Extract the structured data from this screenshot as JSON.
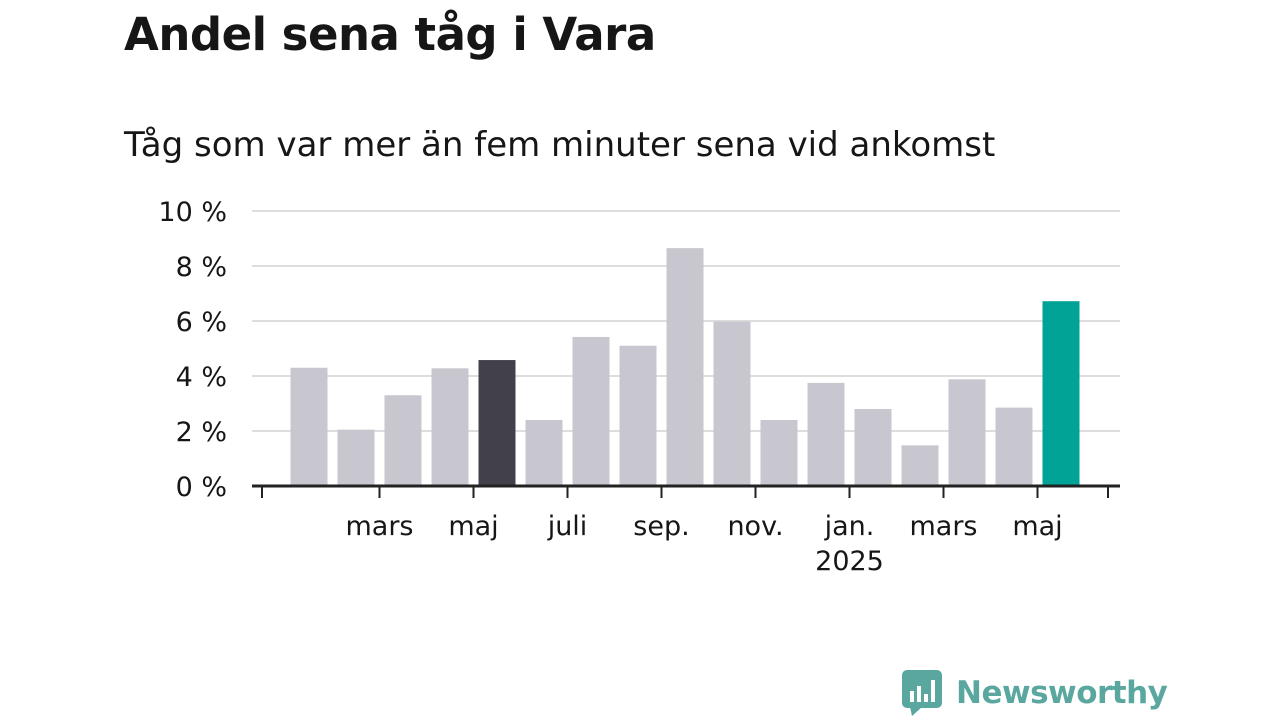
{
  "title": "Andel sena tåg i Vara",
  "subtitle": "Tåg som var mer än fem minuter sena vid ankomst",
  "brand": {
    "name": "Newsworthy",
    "icon": "bar-chart-speech-bubble-icon",
    "color": "#5aa7a0"
  },
  "colors": {
    "bar_default": "#c8c7cf",
    "bar_highlight_dark": "#41404b",
    "bar_highlight_latest": "#00a395",
    "gridline": "#dddddd",
    "axis": "#222222",
    "text": "#161616"
  },
  "chart_data": {
    "type": "bar",
    "title": "Andel sena tåg i Vara",
    "subtitle": "Tåg som var mer än fem minuter sena vid ankomst",
    "xlabel": "",
    "ylabel": "",
    "ylim": [
      0,
      10
    ],
    "y_ticks": [
      0,
      2,
      4,
      6,
      8,
      10
    ],
    "y_tick_labels": [
      "0 %",
      "2 %",
      "4 %",
      "6 %",
      "8 %",
      "10 %"
    ],
    "grid": true,
    "x_tick_labels": [
      {
        "label": "mars",
        "year": "",
        "after_bar": 1
      },
      {
        "label": "maj",
        "year": "",
        "after_bar": 3
      },
      {
        "label": "juli",
        "year": "",
        "after_bar": 5
      },
      {
        "label": "sep.",
        "year": "",
        "after_bar": 7
      },
      {
        "label": "nov.",
        "year": "",
        "after_bar": 9
      },
      {
        "label": "jan.",
        "year": "2025",
        "after_bar": 11
      },
      {
        "label": "mars",
        "year": "",
        "after_bar": 13
      },
      {
        "label": "maj",
        "year": "",
        "after_bar": 15
      }
    ],
    "values": [
      4.3,
      2.05,
      3.3,
      4.28,
      4.58,
      2.4,
      5.42,
      5.1,
      8.65,
      5.98,
      2.4,
      3.75,
      2.8,
      1.48,
      3.88,
      2.85,
      6.72
    ],
    "highlights": {
      "4": "bar_highlight_dark",
      "16": "bar_highlight_latest"
    }
  }
}
